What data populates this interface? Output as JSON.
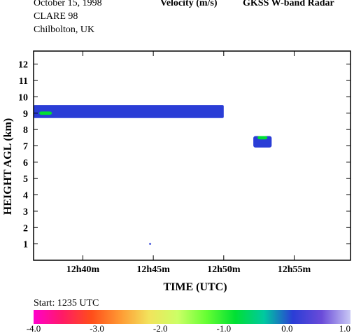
{
  "header": {
    "date": "October  15, 1998",
    "campaign": "CLARE 98",
    "location": "Chilbolton, UK",
    "variable": "Velocity (m/s)",
    "instrument": "GKSS  W-band Radar",
    "start": "Start: 1235 UTC"
  },
  "chart_data": {
    "type": "heatmap",
    "title": "Velocity (m/s)",
    "xlabel": "TIME (UTC)",
    "ylabel": "HEIGHT AGL (km)",
    "x_ticks": [
      "12h40m",
      "12h45m",
      "12h50m",
      "12h55m"
    ],
    "x_tick_minutes": [
      40,
      45,
      50,
      55
    ],
    "xlim_minutes_after_12h": [
      36.5,
      59.0
    ],
    "y_ticks": [
      1,
      2,
      3,
      4,
      5,
      6,
      7,
      8,
      9,
      10,
      11,
      12
    ],
    "ylim": [
      0,
      12.8
    ],
    "colorbar": {
      "ticks": [
        "-4.0",
        "-3.0",
        "-2.0",
        "-1.0",
        "0.0",
        "1.0"
      ],
      "range": [
        -4.0,
        1.0
      ],
      "colors": [
        "#ff00cc",
        "#ff1a66",
        "#ff4d1a",
        "#ff9933",
        "#f2e35c",
        "#ccff66",
        "#66ff33",
        "#00e033",
        "#00c9a0",
        "#2a3dd6",
        "#6a4bd9",
        "#c9c9f5"
      ]
    },
    "echoes": [
      {
        "name": "cloud layer",
        "t_start": 36.5,
        "t_end": 50.0,
        "z_bottom": 8.7,
        "z_top": 9.5,
        "velocity": 0.2
      },
      {
        "name": "small cloud",
        "t_start": 52.1,
        "t_end": 53.4,
        "z_bottom": 6.9,
        "z_top": 7.6,
        "velocity": 0.2
      },
      {
        "name": "small cloud upper edge",
        "t_start": 52.4,
        "t_end": 53.1,
        "z_bottom": 7.4,
        "z_top": 7.6,
        "velocity": -0.8
      },
      {
        "name": "layer base streak",
        "t_start": 36.9,
        "t_end": 37.8,
        "z_bottom": 8.9,
        "z_top": 9.1,
        "velocity": -0.6
      },
      {
        "name": "isolated echo",
        "t_start": 44.7,
        "t_end": 44.85,
        "z_bottom": 0.95,
        "z_top": 1.05,
        "velocity": 0.2
      }
    ]
  }
}
